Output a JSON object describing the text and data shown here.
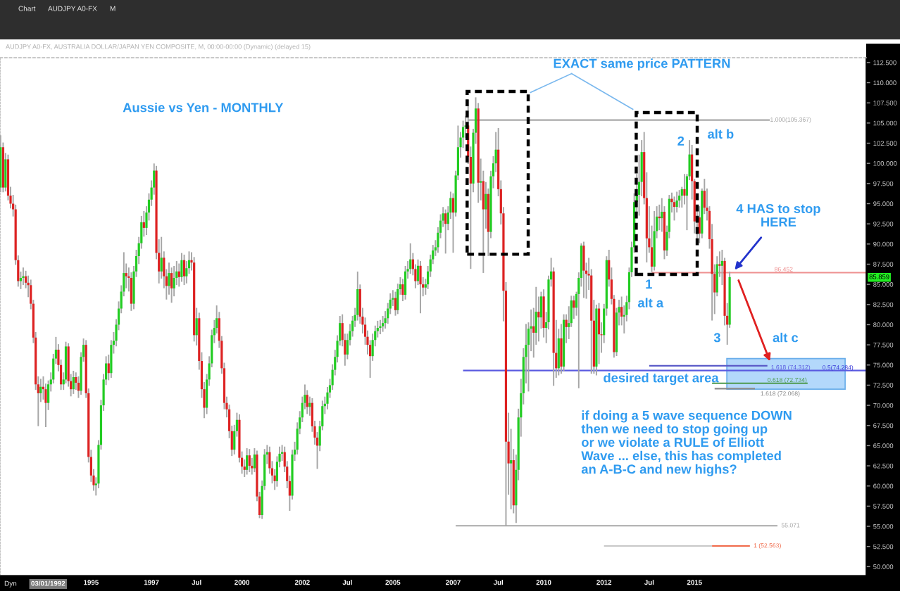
{
  "chart_data": {
    "type": "candlestick",
    "title": "Aussie vs Yen - MONTHLY",
    "subtitle": "AUDJPY A0-FX, AUSTRALIA DOLLAR/JAPAN YEN COMPOSITE, M, 00:00-00:00 (Dynamic) (delayed 15)",
    "x": [
      "1992-01-01",
      "1992-02-01",
      "1992-03-01",
      "1992-04-01",
      "1992-05-01",
      "1992-06-01",
      "1992-07-01",
      "1992-08-01",
      "1992-09-01",
      "1992-10-01",
      "1992-11-01",
      "1992-12-01",
      "1993-01-01",
      "1993-02-01",
      "1993-03-01",
      "1993-04-01",
      "1993-05-01",
      "1993-06-01",
      "1993-07-01",
      "1993-08-01",
      "1993-09-01",
      "1993-10-01",
      "1993-11-01",
      "1993-12-01",
      "1994-01-01",
      "1994-02-01",
      "1994-03-01",
      "1994-04-01",
      "1994-05-01",
      "1994-06-01",
      "1994-07-01",
      "1994-08-01",
      "1994-09-01",
      "1994-10-01",
      "1994-11-01",
      "1994-12-01",
      "1995-01-01",
      "1995-02-01",
      "1995-03-01",
      "1995-04-01",
      "1995-05-01",
      "1995-06-01",
      "1995-07-01",
      "1995-08-01",
      "1995-09-01",
      "1995-10-01",
      "1995-11-01",
      "1995-12-01",
      "1996-01-01",
      "1996-02-01",
      "1996-03-01",
      "1996-04-01",
      "1996-05-01",
      "1996-06-01",
      "1996-07-01",
      "1996-08-01",
      "1996-09-01",
      "1996-10-01",
      "1996-11-01",
      "1996-12-01",
      "1997-01-01",
      "1997-02-01",
      "1997-03-01",
      "1997-04-01",
      "1997-05-01",
      "1997-06-01",
      "1997-07-01",
      "1997-08-01",
      "1997-09-01",
      "1997-10-01",
      "1997-11-01",
      "1997-12-01",
      "1998-01-01",
      "1998-02-01",
      "1998-03-01",
      "1998-04-01",
      "1998-05-01",
      "1998-06-01",
      "1998-07-01",
      "1998-08-01",
      "1998-09-01",
      "1998-10-01",
      "1998-11-01",
      "1998-12-01",
      "1999-01-01",
      "1999-02-01",
      "1999-03-01",
      "1999-04-01",
      "1999-05-01",
      "1999-06-01",
      "1999-07-01",
      "1999-08-01",
      "1999-09-01",
      "1999-10-01",
      "1999-11-01",
      "1999-12-01",
      "2000-01-01",
      "2000-02-01",
      "2000-03-01",
      "2000-04-01",
      "2000-05-01",
      "2000-06-01",
      "2000-07-01",
      "2000-08-01",
      "2000-09-01",
      "2000-10-01",
      "2000-11-01",
      "2000-12-01",
      "2001-01-01",
      "2001-02-01",
      "2001-03-01",
      "2001-04-01",
      "2001-05-01",
      "2001-06-01",
      "2001-07-01",
      "2001-08-01",
      "2001-09-01",
      "2001-10-01",
      "2001-11-01",
      "2001-12-01",
      "2002-01-01",
      "2002-02-01",
      "2002-03-01",
      "2002-04-01",
      "2002-05-01",
      "2002-06-01",
      "2002-07-01",
      "2002-08-01",
      "2002-09-01",
      "2002-10-01",
      "2002-11-01",
      "2002-12-01",
      "2003-01-01",
      "2003-02-01",
      "2003-03-01",
      "2003-04-01",
      "2003-05-01",
      "2003-06-01",
      "2003-07-01",
      "2003-08-01",
      "2003-09-01",
      "2003-10-01",
      "2003-11-01",
      "2003-12-01",
      "2004-01-01",
      "2004-02-01",
      "2004-03-01",
      "2004-04-01",
      "2004-05-01",
      "2004-06-01",
      "2004-07-01",
      "2004-08-01",
      "2004-09-01",
      "2004-10-01",
      "2004-11-01",
      "2004-12-01",
      "2005-01-01",
      "2005-02-01",
      "2005-03-01",
      "2005-04-01",
      "2005-05-01",
      "2005-06-01",
      "2005-07-01",
      "2005-08-01",
      "2005-09-01",
      "2005-10-01",
      "2005-11-01",
      "2005-12-01",
      "2006-01-01",
      "2006-02-01",
      "2006-03-01",
      "2006-04-01",
      "2006-05-01",
      "2006-06-01",
      "2006-07-01",
      "2006-08-01",
      "2006-09-01",
      "2006-10-01",
      "2006-11-01",
      "2006-12-01",
      "2007-01-01",
      "2007-02-01",
      "2007-03-01",
      "2007-04-01",
      "2007-05-01",
      "2007-06-01",
      "2007-07-01",
      "2007-08-01",
      "2007-09-01",
      "2007-10-01",
      "2007-11-01",
      "2007-12-01",
      "2008-01-01",
      "2008-02-01",
      "2008-03-01",
      "2008-04-01",
      "2008-05-01",
      "2008-06-01",
      "2008-07-01",
      "2008-08-01",
      "2008-09-01",
      "2008-10-01",
      "2008-11-01",
      "2008-12-01",
      "2009-01-01",
      "2009-02-01",
      "2009-03-01",
      "2009-04-01",
      "2009-05-01",
      "2009-06-01",
      "2009-07-01",
      "2009-08-01",
      "2009-09-01",
      "2009-10-01",
      "2009-11-01",
      "2009-12-01",
      "2010-01-01",
      "2010-02-01",
      "2010-03-01",
      "2010-04-01",
      "2010-05-01",
      "2010-06-01",
      "2010-07-01",
      "2010-08-01",
      "2010-09-01",
      "2010-10-01",
      "2010-11-01",
      "2010-12-01",
      "2011-01-01",
      "2011-02-01",
      "2011-03-01",
      "2011-04-01",
      "2011-05-01",
      "2011-06-01",
      "2011-07-01",
      "2011-08-01",
      "2011-09-01",
      "2011-10-01",
      "2011-11-01",
      "2011-12-01",
      "2012-01-01",
      "2012-02-01",
      "2012-03-01",
      "2012-04-01",
      "2012-05-01",
      "2012-06-01",
      "2012-07-01",
      "2012-08-01",
      "2012-09-01",
      "2012-10-01",
      "2012-11-01",
      "2012-12-01",
      "2013-01-01",
      "2013-02-01",
      "2013-03-01",
      "2013-04-01",
      "2013-05-01",
      "2013-06-01",
      "2013-07-01",
      "2013-08-01",
      "2013-09-01",
      "2013-10-01",
      "2013-11-01",
      "2013-12-01",
      "2014-01-01",
      "2014-02-01",
      "2014-03-01",
      "2014-04-01",
      "2014-05-01",
      "2014-06-01",
      "2014-07-01",
      "2014-08-01",
      "2014-09-01",
      "2014-10-01",
      "2014-11-01",
      "2014-12-01",
      "2015-01-01",
      "2015-02-01",
      "2015-03-01",
      "2015-04-01",
      "2015-05-01",
      "2015-06-01",
      "2015-07-01",
      "2015-08-01",
      "2015-09-01",
      "2015-10-01",
      "2015-11-01",
      "2015-12-01",
      "2016-01-01",
      "2016-02-01",
      "2016-03-01"
    ],
    "ohlc": [
      [
        97,
        103.4,
        96.5,
        102
      ],
      [
        102,
        102.5,
        96.5,
        97
      ],
      [
        97,
        101.2,
        96.6,
        100.5
      ],
      [
        100.5,
        101,
        95.5,
        96
      ],
      [
        96,
        97,
        94.5,
        95
      ],
      [
        95,
        96,
        93.5,
        94.3
      ],
      [
        94.3,
        94.8,
        87.5,
        88
      ],
      [
        88,
        88.5,
        84.8,
        85.4
      ],
      [
        85.4,
        86.5,
        84.5,
        85.8
      ],
      [
        85.8,
        87,
        85,
        86
      ],
      [
        86,
        86.6,
        84.6,
        85.2
      ],
      [
        85.2,
        86,
        83.5,
        84.9
      ],
      [
        84.9,
        85.5,
        82,
        82.6
      ],
      [
        82.6,
        83,
        77.8,
        78.4
      ],
      [
        78.4,
        79,
        72,
        72.6
      ],
      [
        72.6,
        73.5,
        67.5,
        71.5
      ],
      [
        71.5,
        73.2,
        70.5,
        72.3
      ],
      [
        72.3,
        73.5,
        70.8,
        72
      ],
      [
        72,
        72.6,
        67.4,
        70.3
      ],
      [
        70.3,
        73,
        69.5,
        72.6
      ],
      [
        72.6,
        74,
        71.8,
        73.2
      ],
      [
        73.2,
        76.3,
        72.8,
        75.8
      ],
      [
        75.8,
        78.4,
        75.2,
        76.9
      ],
      [
        76.9,
        77.5,
        74.3,
        75
      ],
      [
        75,
        75.6,
        72,
        72.6
      ],
      [
        72.6,
        74,
        72,
        73.2
      ],
      [
        73.2,
        77.8,
        72.8,
        77.3
      ],
      [
        77.3,
        77.6,
        72.4,
        73
      ],
      [
        73,
        73.8,
        71.2,
        72
      ],
      [
        72,
        74.2,
        71.5,
        73.5
      ],
      [
        73.5,
        74,
        72,
        72.8
      ],
      [
        72.8,
        73.5,
        71,
        71.8
      ],
      [
        71.8,
        76.5,
        71.4,
        76
      ],
      [
        76,
        78.2,
        75.5,
        77.5
      ],
      [
        77.5,
        78,
        71,
        71.5
      ],
      [
        71.5,
        72,
        63,
        63.6
      ],
      [
        63.6,
        64.4,
        60.6,
        61.3
      ],
      [
        61.3,
        62,
        59.5,
        60.1
      ],
      [
        60.1,
        61,
        58.9,
        60.3
      ],
      [
        60.3,
        65.6,
        59.8,
        65.1
      ],
      [
        65.1,
        70.6,
        64.6,
        70
      ],
      [
        70,
        73.8,
        69.4,
        73.2
      ],
      [
        73.2,
        76,
        72.6,
        75.2
      ],
      [
        75.2,
        76.2,
        73.2,
        74
      ],
      [
        74,
        78,
        73.5,
        77.5
      ],
      [
        77.5,
        79,
        76.5,
        78
      ],
      [
        78,
        80.6,
        77.4,
        80
      ],
      [
        80,
        82.8,
        79.4,
        82
      ],
      [
        82,
        84.8,
        81.5,
        84.1
      ],
      [
        84.1,
        88.9,
        83.6,
        86.4
      ],
      [
        86.4,
        87.5,
        84.6,
        86
      ],
      [
        86,
        87,
        84.2,
        85.8
      ],
      [
        85.8,
        86.4,
        81.8,
        82.6
      ],
      [
        82.6,
        87.2,
        82,
        86.6
      ],
      [
        86.6,
        89.2,
        86,
        88.5
      ],
      [
        88.5,
        90.8,
        87.6,
        90.1
      ],
      [
        90.1,
        93.4,
        89.5,
        92.7
      ],
      [
        92.7,
        94,
        91,
        92
      ],
      [
        92,
        94.6,
        91.2,
        93.9
      ],
      [
        93.9,
        96.2,
        93,
        95.5
      ],
      [
        95.5,
        97.8,
        94.8,
        97
      ],
      [
        97,
        99.9,
        96.2,
        99.1
      ],
      [
        99.1,
        99.6,
        88.2,
        88.9
      ],
      [
        88.9,
        90.5,
        85.2,
        86.6
      ],
      [
        86.6,
        90.8,
        85.8,
        88.3
      ],
      [
        88.3,
        89,
        84.6,
        86
      ],
      [
        86,
        86.8,
        83.2,
        84.8
      ],
      [
        84.8,
        87.6,
        83.8,
        86.4
      ],
      [
        86.4,
        87,
        82.8,
        84.5
      ],
      [
        84.5,
        87.2,
        83.6,
        85.8
      ],
      [
        85.8,
        87.8,
        85,
        86.6
      ],
      [
        86.6,
        87.5,
        84.8,
        85.9
      ],
      [
        85.9,
        88.8,
        85.4,
        88
      ],
      [
        88,
        88.6,
        85,
        86
      ],
      [
        86,
        87.8,
        85.2,
        87
      ],
      [
        87,
        89,
        86.4,
        88
      ],
      [
        88,
        88.9,
        86.8,
        87.7
      ],
      [
        87.7,
        88.3,
        78,
        78.7
      ],
      [
        78.7,
        82,
        77.5,
        80.8
      ],
      [
        80.8,
        81.4,
        74.5,
        75.5
      ],
      [
        75.5,
        76.5,
        71,
        72
      ],
      [
        72,
        72.8,
        68.5,
        69.7
      ],
      [
        69.7,
        73.8,
        69,
        73.2
      ],
      [
        73.2,
        76,
        72.5,
        75.2
      ],
      [
        75.2,
        79.3,
        74.8,
        78.7
      ],
      [
        78.7,
        80.5,
        77.8,
        79.6
      ],
      [
        79.6,
        82.3,
        79,
        80.8
      ],
      [
        80.8,
        81.5,
        77.2,
        78
      ],
      [
        78,
        78.5,
        74,
        74.6
      ],
      [
        74.6,
        75.2,
        69.6,
        70.3
      ],
      [
        70.3,
        71,
        68.6,
        69.5
      ],
      [
        69.5,
        70,
        66,
        66.8
      ],
      [
        66.8,
        67.4,
        63.8,
        64.5
      ],
      [
        64.5,
        67.5,
        64,
        66.8
      ],
      [
        66.8,
        69,
        66.2,
        68.2
      ],
      [
        68.2,
        68.8,
        63,
        63.5
      ],
      [
        63.5,
        64.2,
        61.6,
        62.4
      ],
      [
        62.4,
        63.2,
        61.2,
        62
      ],
      [
        62,
        64.6,
        61.5,
        63.8
      ],
      [
        63.8,
        64.5,
        61.8,
        62.5
      ],
      [
        62.5,
        63.4,
        61.5,
        62.2
      ],
      [
        62.2,
        64.6,
        61.8,
        63.9
      ],
      [
        63.9,
        64.3,
        58.2,
        58.7
      ],
      [
        58.7,
        59.2,
        56.1,
        56.4
      ],
      [
        56.4,
        60.6,
        56,
        60
      ],
      [
        60,
        64.5,
        59.6,
        63.9
      ],
      [
        63.9,
        65,
        62.8,
        64.2
      ],
      [
        64.2,
        64.8,
        61.6,
        62.2
      ],
      [
        62.2,
        63,
        60.4,
        61.3
      ],
      [
        61.3,
        62,
        59.6,
        60.6
      ],
      [
        60.6,
        63.6,
        60,
        63
      ],
      [
        63,
        64.8,
        62.4,
        64
      ],
      [
        64,
        65,
        63.2,
        64.2
      ],
      [
        64.2,
        64.8,
        61.8,
        62.4
      ],
      [
        62.4,
        63,
        59.8,
        60.6
      ],
      [
        60.6,
        61.2,
        57,
        58.8
      ],
      [
        58.8,
        64.4,
        58.4,
        63.9
      ],
      [
        63.9,
        65.4,
        63.2,
        64.5
      ],
      [
        64.5,
        67.8,
        64,
        67.1
      ],
      [
        67.1,
        69.2,
        66.5,
        68.5
      ],
      [
        68.5,
        71,
        68,
        70.3
      ],
      [
        70.3,
        72.5,
        69.6,
        71.3
      ],
      [
        71.3,
        71.8,
        69,
        69.8
      ],
      [
        69.8,
        71,
        68.8,
        70.3
      ],
      [
        70.3,
        70.8,
        66.8,
        67.4
      ],
      [
        67.4,
        68,
        65.2,
        66
      ],
      [
        66,
        66.6,
        62.2,
        65
      ],
      [
        65,
        68,
        64.4,
        67.4
      ],
      [
        67.4,
        70.5,
        67,
        69.9
      ],
      [
        69.9,
        71,
        69,
        70.2
      ],
      [
        70.2,
        72.2,
        69.6,
        71.6
      ],
      [
        71.6,
        73.2,
        71,
        72.5
      ],
      [
        72.5,
        75,
        72,
        74.4
      ],
      [
        74.4,
        76.8,
        73.8,
        76
      ],
      [
        76,
        78.6,
        75.4,
        78
      ],
      [
        78,
        81,
        77.5,
        80.2
      ],
      [
        80.2,
        81.2,
        77.4,
        78.1
      ],
      [
        78.1,
        78.8,
        75,
        76.3
      ],
      [
        76.3,
        78.8,
        75.8,
        78.1
      ],
      [
        78.1,
        80,
        77.5,
        79.2
      ],
      [
        79.2,
        81,
        78.6,
        80.5
      ],
      [
        80.5,
        82,
        79.8,
        81.2
      ],
      [
        81.2,
        86.5,
        80.6,
        84.4
      ],
      [
        84.4,
        84.9,
        80.2,
        81
      ],
      [
        81,
        82,
        79,
        80
      ],
      [
        80,
        80.8,
        77.6,
        78.5
      ],
      [
        78.5,
        79.2,
        76.4,
        77.5
      ],
      [
        77.5,
        78,
        73.5,
        76.1
      ],
      [
        76.1,
        78.8,
        75.6,
        78.1
      ],
      [
        78.1,
        79.8,
        77.4,
        79.2
      ],
      [
        79.2,
        80.4,
        78.5,
        79.6
      ],
      [
        79.6,
        80.5,
        78.9,
        79.8
      ],
      [
        79.8,
        81,
        79.2,
        80.2
      ],
      [
        80.2,
        81.6,
        79.6,
        80.8
      ],
      [
        80.8,
        82.6,
        80.2,
        82
      ],
      [
        82,
        83.8,
        81.4,
        83.1
      ],
      [
        83.1,
        84.2,
        82.4,
        83.3
      ],
      [
        83.3,
        84,
        81.2,
        81.8
      ],
      [
        81.8,
        85,
        81.4,
        84.4
      ],
      [
        84.4,
        85.8,
        83.8,
        85
      ],
      [
        85,
        85.6,
        83,
        83.7
      ],
      [
        83.7,
        87.2,
        83.2,
        86.6
      ],
      [
        86.6,
        87.8,
        85.8,
        86.9
      ],
      [
        86.9,
        90,
        86.4,
        88.1
      ],
      [
        88.1,
        88.8,
        86.2,
        86.9
      ],
      [
        86.9,
        87.4,
        84.6,
        85.4
      ],
      [
        85.4,
        88,
        85,
        87.3
      ],
      [
        87.3,
        87.8,
        81.5,
        85
      ],
      [
        85,
        85.8,
        83.6,
        84.6
      ],
      [
        84.6,
        85.6,
        83.8,
        85
      ],
      [
        85,
        87.2,
        84.5,
        86.6
      ],
      [
        86.6,
        88.6,
        86,
        88.1
      ],
      [
        88.1,
        89.8,
        87.6,
        89.2
      ],
      [
        89.2,
        90.4,
        88.6,
        89.6
      ],
      [
        89.6,
        92,
        89,
        91.4
      ],
      [
        91.4,
        93.6,
        90.8,
        92.9
      ],
      [
        92.9,
        94.5,
        92.2,
        93.8
      ],
      [
        93.8,
        94.2,
        88.9,
        92.5
      ],
      [
        92.5,
        94.6,
        91.8,
        93.9
      ],
      [
        93.9,
        96.4,
        93.2,
        95.7
      ],
      [
        95.7,
        96.2,
        89,
        93.9
      ],
      [
        93.9,
        99,
        93.5,
        98.5
      ],
      [
        98.5,
        104.6,
        98,
        102
      ],
      [
        102,
        103.8,
        100.8,
        103.2
      ],
      [
        103.2,
        105.2,
        102,
        104.5
      ],
      [
        104.5,
        105.8,
        103.2,
        104.7
      ],
      [
        104.7,
        107.8,
        100,
        100.8
      ],
      [
        100.8,
        102,
        87,
        97.5
      ],
      [
        97.5,
        104.2,
        96.5,
        103.8
      ],
      [
        103.8,
        108.1,
        102.5,
        106.8
      ],
      [
        106.8,
        107.4,
        95.2,
        97.6
      ],
      [
        97.6,
        100.5,
        95.5,
        97.8
      ],
      [
        97.8,
        99,
        86.5,
        94.3
      ],
      [
        94.3,
        97.6,
        92,
        96.2
      ],
      [
        96.2,
        96.8,
        88.6,
        91.5
      ],
      [
        91.5,
        99,
        90.8,
        98.4
      ],
      [
        98.4,
        100.8,
        97,
        100
      ],
      [
        100,
        103.8,
        99,
        101.7
      ],
      [
        101.7,
        104.3,
        96,
        96.8
      ],
      [
        96.8,
        97.8,
        92.5,
        93.8
      ],
      [
        93.8,
        94.5,
        80.5,
        84.2
      ],
      [
        84.2,
        85.2,
        55.1,
        65.5
      ],
      [
        65.5,
        69,
        59,
        62.8
      ],
      [
        62.8,
        67,
        57.2,
        63.2
      ],
      [
        63.2,
        64.5,
        56.7,
        57.6
      ],
      [
        57.6,
        63.8,
        55.5,
        62
      ],
      [
        62,
        69.5,
        60.8,
        68.5
      ],
      [
        68.5,
        73.2,
        66.2,
        71.5
      ],
      [
        71.5,
        77,
        70.2,
        76
      ],
      [
        76,
        80,
        72.8,
        77.5
      ],
      [
        77.5,
        80.2,
        71.8,
        79.5
      ],
      [
        79.5,
        81.8,
        76.8,
        79.8
      ],
      [
        79.8,
        82,
        76,
        79
      ],
      [
        79,
        84.6,
        77.6,
        81.6
      ],
      [
        81.6,
        83.4,
        78,
        80.9
      ],
      [
        80.9,
        84,
        79.6,
        83.5
      ],
      [
        83.5,
        84.3,
        78.5,
        79.6
      ],
      [
        79.6,
        81.5,
        77.8,
        80.3
      ],
      [
        80.3,
        86,
        79.5,
        85.6
      ],
      [
        85.6,
        88.2,
        84.8,
        86.6
      ],
      [
        86.6,
        87,
        72.5,
        76.5
      ],
      [
        76.5,
        80.5,
        73.5,
        74.6
      ],
      [
        74.6,
        79.4,
        73.8,
        78.3
      ],
      [
        78.3,
        80,
        74,
        74.8
      ],
      [
        74.8,
        81.2,
        74.3,
        80.6
      ],
      [
        80.6,
        81.2,
        77.8,
        79.7
      ],
      [
        79.7,
        82.2,
        78.3,
        80.2
      ],
      [
        80.2,
        83.5,
        79.8,
        83
      ],
      [
        83,
        83.5,
        80.8,
        82.1
      ],
      [
        82.1,
        84,
        81.2,
        83.8
      ],
      [
        83.8,
        86.4,
        72.2,
        85.8
      ],
      [
        85.8,
        90,
        84.8,
        89.8
      ],
      [
        89.8,
        90.2,
        83.4,
        86.7
      ],
      [
        86.7,
        87.6,
        83.3,
        86.3
      ],
      [
        86.3,
        88.2,
        84.4,
        86.1
      ],
      [
        86.1,
        86.8,
        74,
        80.5
      ],
      [
        80.5,
        83,
        74,
        74.8
      ],
      [
        74.8,
        82.4,
        73.8,
        82
      ],
      [
        82,
        82.6,
        75.2,
        78.8
      ],
      [
        78.8,
        80.2,
        76.6,
        78.7
      ],
      [
        78.7,
        82.5,
        77.8,
        82
      ],
      [
        82,
        88.4,
        81.2,
        88
      ],
      [
        88,
        89.2,
        84.8,
        85.6
      ],
      [
        85.6,
        87,
        82.6,
        83.2
      ],
      [
        83.2,
        83.6,
        76,
        76.6
      ],
      [
        76.6,
        82,
        76.2,
        81.5
      ],
      [
        81.5,
        83,
        80,
        82.2
      ],
      [
        82.2,
        83.4,
        80,
        81
      ],
      [
        81,
        82.3,
        79,
        81.2
      ],
      [
        81.2,
        83.5,
        80.5,
        82.8
      ],
      [
        82.8,
        87,
        82,
        86.5
      ],
      [
        86.5,
        90.2,
        86,
        89.6
      ],
      [
        89.6,
        96.2,
        89,
        95.2
      ],
      [
        95.2,
        98.6,
        93.8,
        96.1
      ],
      [
        96.1,
        101,
        93.6,
        97.7
      ],
      [
        97.7,
        102.8,
        96,
        101.4
      ],
      [
        101.4,
        103.8,
        95,
        95.7
      ],
      [
        95.7,
        98.8,
        87.8,
        90.7
      ],
      [
        90.7,
        94.6,
        89,
        89.6
      ],
      [
        89.6,
        92.2,
        86.6,
        87.2
      ],
      [
        87.2,
        94,
        86.8,
        91.6
      ],
      [
        91.6,
        94.6,
        90.8,
        93.4
      ],
      [
        93.4,
        94.8,
        91.8,
        93.2
      ],
      [
        93.2,
        95.6,
        91.6,
        94
      ],
      [
        94,
        94.6,
        88.2,
        89.2
      ],
      [
        89.2,
        92.2,
        88.6,
        91.5
      ],
      [
        91.5,
        96,
        90.8,
        95.6
      ],
      [
        95.6,
        96.3,
        94,
        95.2
      ],
      [
        95.2,
        95.8,
        93,
        94.6
      ],
      [
        94.6,
        96.4,
        94,
        95.4
      ],
      [
        95.4,
        96.6,
        94.6,
        96
      ],
      [
        96,
        97,
        94.6,
        96.8
      ],
      [
        96.8,
        98.6,
        95,
        96
      ],
      [
        96,
        98.6,
        91.8,
        98.4
      ],
      [
        98.4,
        102.8,
        98,
        101.1
      ],
      [
        101.1,
        102.2,
        95.6,
        97.8
      ],
      [
        97.8,
        98,
        91.4,
        92.8
      ],
      [
        92.8,
        94.4,
        90.7,
        93.3
      ],
      [
        93.3,
        94.6,
        90.2,
        91.3
      ],
      [
        91.3,
        96.8,
        90.8,
        96.6
      ],
      [
        96.6,
        98,
        93.8,
        94.5
      ],
      [
        94.5,
        96.8,
        93,
        94.1
      ],
      [
        94.1,
        94.6,
        89.5,
        90.6
      ],
      [
        90.6,
        92.4,
        80.6,
        86.3
      ],
      [
        86.3,
        87.4,
        81.4,
        84
      ],
      [
        84,
        88.4,
        83.6,
        87.5
      ],
      [
        87.5,
        89,
        86,
        87.3
      ],
      [
        87.3,
        89.2,
        85,
        87.9
      ],
      [
        87.9,
        88.2,
        80,
        81.1
      ],
      [
        81.1,
        82.6,
        77.6,
        80
      ],
      [
        80,
        86.5,
        79.7,
        85.9
      ]
    ],
    "colors": [
      "#22cc22",
      "#dd2222",
      "#22cc22",
      "#dd2222",
      "#dd2222",
      "#dd2222",
      "#dd2222",
      "#dd2222",
      "#22cc22",
      "#22cc22",
      "#dd2222",
      "#dd2222",
      "#dd2222",
      "#dd2222",
      "#dd2222",
      "#dd2222",
      "#22cc22",
      "#dd2222",
      "#dd2222",
      "#22cc22",
      "#22cc22",
      "#22cc22",
      "#22cc22",
      "#dd2222",
      "#dd2222",
      "#22cc22",
      "#22cc22",
      "#dd2222",
      "#dd2222",
      "#22cc22",
      "#dd2222",
      "#dd2222",
      "#22cc22",
      "#22cc22",
      "#dd2222",
      "#dd2222",
      "#dd2222",
      "#dd2222",
      "#22cc22",
      "#22cc22",
      "#22cc22",
      "#22cc22",
      "#22cc22",
      "#dd2222",
      "#22cc22",
      "#22cc22",
      "#22cc22",
      "#22cc22",
      "#22cc22",
      "#22cc22",
      "#dd2222",
      "#dd2222",
      "#dd2222",
      "#22cc22",
      "#22cc22",
      "#22cc22",
      "#22cc22",
      "#dd2222",
      "#22cc22",
      "#22cc22",
      "#22cc22",
      "#22cc22",
      "#dd2222",
      "#dd2222",
      "#22cc22",
      "#dd2222",
      "#dd2222",
      "#22cc22",
      "#dd2222",
      "#22cc22",
      "#22cc22",
      "#dd2222",
      "#22cc22",
      "#dd2222",
      "#22cc22",
      "#22cc22",
      "#dd2222",
      "#dd2222",
      "#22cc22",
      "#dd2222",
      "#dd2222",
      "#dd2222",
      "#22cc22",
      "#22cc22",
      "#22cc22",
      "#22cc22",
      "#22cc22",
      "#dd2222",
      "#dd2222",
      "#dd2222",
      "#dd2222",
      "#dd2222",
      "#dd2222",
      "#22cc22",
      "#22cc22",
      "#dd2222",
      "#dd2222",
      "#dd2222",
      "#22cc22",
      "#dd2222",
      "#dd2222",
      "#22cc22",
      "#dd2222",
      "#dd2222",
      "#22cc22",
      "#22cc22",
      "#22cc22",
      "#dd2222",
      "#dd2222",
      "#dd2222",
      "#22cc22",
      "#22cc22",
      "#22cc22",
      "#dd2222",
      "#dd2222",
      "#dd2222",
      "#22cc22",
      "#22cc22",
      "#22cc22",
      "#22cc22",
      "#22cc22",
      "#22cc22",
      "#dd2222",
      "#22cc22",
      "#dd2222",
      "#dd2222",
      "#dd2222",
      "#22cc22",
      "#22cc22",
      "#22cc22",
      "#22cc22",
      "#22cc22",
      "#22cc22",
      "#22cc22",
      "#22cc22",
      "#22cc22",
      "#dd2222",
      "#dd2222",
      "#22cc22",
      "#22cc22",
      "#22cc22",
      "#22cc22",
      "#22cc22",
      "#dd2222",
      "#dd2222",
      "#dd2222",
      "#dd2222",
      "#dd2222",
      "#22cc22",
      "#22cc22",
      "#22cc22",
      "#22cc22",
      "#22cc22",
      "#22cc22",
      "#22cc22",
      "#22cc22",
      "#22cc22",
      "#dd2222",
      "#22cc22",
      "#22cc22",
      "#dd2222",
      "#22cc22",
      "#22cc22",
      "#22cc22",
      "#dd2222",
      "#dd2222",
      "#22cc22",
      "#dd2222",
      "#dd2222",
      "#22cc22",
      "#22cc22",
      "#22cc22",
      "#22cc22",
      "#22cc22",
      "#22cc22",
      "#22cc22",
      "#22cc22",
      "#dd2222",
      "#22cc22",
      "#22cc22",
      "#dd2222",
      "#22cc22",
      "#22cc22",
      "#22cc22",
      "#22cc22",
      "#22cc22",
      "#dd2222",
      "#dd2222",
      "#22cc22",
      "#22cc22",
      "#dd2222",
      "#22cc22",
      "#dd2222",
      "#22cc22",
      "#dd2222",
      "#22cc22",
      "#22cc22",
      "#22cc22",
      "#dd2222",
      "#dd2222",
      "#dd2222",
      "#dd2222",
      "#dd2222",
      "#22cc22",
      "#dd2222",
      "#22cc22",
      "#22cc22",
      "#22cc22",
      "#22cc22",
      "#22cc22",
      "#22cc22",
      "#22cc22",
      "#dd2222",
      "#22cc22",
      "#dd2222",
      "#22cc22",
      "#dd2222",
      "#22cc22",
      "#22cc22",
      "#22cc22",
      "#dd2222",
      "#dd2222",
      "#22cc22",
      "#dd2222",
      "#22cc22",
      "#dd2222",
      "#22cc22",
      "#22cc22",
      "#dd2222",
      "#22cc22",
      "#22cc22",
      "#22cc22",
      "#dd2222",
      "#dd2222",
      "#dd2222",
      "#dd2222",
      "#dd2222",
      "#22cc22",
      "#dd2222",
      "#dd2222",
      "#22cc22",
      "#22cc22",
      "#dd2222",
      "#dd2222",
      "#dd2222",
      "#22cc22",
      "#22cc22",
      "#dd2222",
      "#22cc22",
      "#22cc22",
      "#22cc22",
      "#22cc22",
      "#22cc22",
      "#22cc22",
      "#22cc22",
      "#22cc22",
      "#dd2222",
      "#dd2222",
      "#dd2222",
      "#dd2222",
      "#22cc22",
      "#22cc22",
      "#dd2222",
      "#22cc22",
      "#dd2222",
      "#22cc22",
      "#22cc22",
      "#dd2222",
      "#dd2222",
      "#22cc22",
      "#22cc22",
      "#22cc22",
      "#dd2222",
      "#22cc22",
      "#22cc22",
      "#dd2222",
      "#dd2222",
      "#22cc22",
      "#dd2222",
      "#22cc22",
      "#dd2222",
      "#dd2222",
      "#dd2222",
      "#dd2222",
      "#dd2222",
      "#22cc22",
      "#dd2222",
      "#22cc22",
      "#dd2222",
      "#dd2222",
      "#22cc22"
    ],
    "series": [
      {
        "type": "line",
        "name": "1.000(105.367)",
        "x": [
          "2007-07-01",
          "2017-07-01"
        ],
        "values": [
          105.367,
          105.367
        ],
        "color": "#a8a8a8"
      },
      {
        "type": "line",
        "name": "86.452",
        "x": [
          "2013-08-01",
          "2020-09-09"
        ],
        "values": [
          86.452,
          86.452
        ],
        "color": "#ee9090"
      },
      {
        "type": "line",
        "name": "1.618 (74.312)",
        "x": [
          "2007-05-01",
          "2020-09-09"
        ],
        "values": [
          74.312,
          74.312
        ],
        "color": "#5a5ae0"
      },
      {
        "type": "line",
        "x": [
          "2013-07-01",
          "2017-06-01"
        ],
        "values": [
          74.9,
          74.9
        ],
        "color": "#5b5bc8"
      },
      {
        "type": "line",
        "name": "0.618 (72.734)",
        "x": [
          "2015-08-01",
          "2018-10-01"
        ],
        "values": [
          72.734,
          72.734
        ],
        "color": "#4e9a4e"
      },
      {
        "type": "line",
        "name": "1.618 (72.068)",
        "x": [
          "2015-09-01",
          "2017-01-01"
        ],
        "values": [
          72.068,
          72.068
        ],
        "color": "#8a8a8a"
      },
      {
        "type": "line",
        "name": "55.071",
        "x": [
          "2007-02-01",
          "2017-10-01"
        ],
        "values": [
          55.071,
          55.071
        ],
        "color": "#a8a8a8"
      },
      {
        "type": "line",
        "x": [
          "2012-01-01",
          "2015-08-01"
        ],
        "values": [
          52.563,
          52.563
        ],
        "color": "#c8c8c8"
      },
      {
        "type": "line",
        "name": "1 (52.563)",
        "x": [
          "2015-08-01",
          "2016-11-01"
        ],
        "values": [
          52.563,
          52.563
        ],
        "color": "#f06a4a"
      },
      {
        "type": "bar",
        "x": [
          "2018-01-12"
        ],
        "base": [
          72.0
        ],
        "values": [
          3.8
        ],
        "color": "#b3d8fb"
      }
    ],
    "xlim": [
      "1991-12-25",
      "2020-09-09"
    ],
    "xticks": [
      {
        "value": "1995-01-01",
        "label": "1995"
      },
      {
        "value": "1997-01-01",
        "label": "1997"
      },
      {
        "value": "1998-07-01",
        "label": "Jul"
      },
      {
        "value": "2000-01-01",
        "label": "2000"
      },
      {
        "value": "2002-01-01",
        "label": "2002"
      },
      {
        "value": "2003-07-01",
        "label": "Jul"
      },
      {
        "value": "2005-01-01",
        "label": "2005"
      },
      {
        "value": "2007-01-01",
        "label": "2007"
      },
      {
        "value": "2008-07-01",
        "label": "Jul"
      },
      {
        "value": "2010-01-01",
        "label": "2010"
      },
      {
        "value": "2012-01-01",
        "label": "2012"
      },
      {
        "value": "2013-07-01",
        "label": "Jul"
      },
      {
        "value": "2015-01-01",
        "label": "2015"
      }
    ],
    "ylim": [
      48.9,
      113.1
    ],
    "yticks": [
      {
        "value": 50,
        "label": "50.000"
      },
      {
        "value": 52.5,
        "label": "52.500"
      },
      {
        "value": 55,
        "label": "55.000"
      },
      {
        "value": 57.5,
        "label": "57.500"
      },
      {
        "value": 60,
        "label": "60.000"
      },
      {
        "value": 62.5,
        "label": "62.500"
      },
      {
        "value": 65,
        "label": "65.000"
      },
      {
        "value": 67.5,
        "label": "67.500"
      },
      {
        "value": 70,
        "label": "70.000"
      },
      {
        "value": 72.5,
        "label": "72.500"
      },
      {
        "value": 75,
        "label": "75.000"
      },
      {
        "value": 77.5,
        "label": "77.500"
      },
      {
        "value": 80,
        "label": "80.000"
      },
      {
        "value": 82.5,
        "label": "82.500"
      },
      {
        "value": 85,
        "label": "85.000"
      },
      {
        "value": 87.5,
        "label": "87.500"
      },
      {
        "value": 90,
        "label": "90.000"
      },
      {
        "value": 92.5,
        "label": "92.500"
      },
      {
        "value": 95,
        "label": "95.000"
      },
      {
        "value": 97.5,
        "label": "97.500"
      },
      {
        "value": 100,
        "label": "100.000"
      },
      {
        "value": 102.5,
        "label": "102.500"
      },
      {
        "value": 105,
        "label": "105.000"
      },
      {
        "value": 107.5,
        "label": "107.500"
      },
      {
        "value": 110,
        "label": "110.000"
      },
      {
        "value": 112.5,
        "label": "112.500"
      }
    ],
    "annotations": [
      "EXACT same price PATTERN",
      "2",
      "alt b",
      {
        "text": "4 HAS to stop\nHERE",
        "x": "2016-05-01",
        "y": 86.8
      },
      "1",
      "alt a",
      "3",
      "alt c",
      "desired target area",
      "if doing a 5 wave sequence DOWN\nthen we need to stop going up\nor we violate a RULE of Elliott\nWave ... else, this has completed\nan A-B-C and new highs?",
      {
        "text": "0.5(74.284)",
        "x": "2019-03-28",
        "y": 74.284
      },
      {
        "text": "85.859",
        "y": 85.859
      },
      "Chart",
      "AUDJPY A0-FX",
      "M",
      "Dyn",
      "03/01/1992"
    ]
  }
}
